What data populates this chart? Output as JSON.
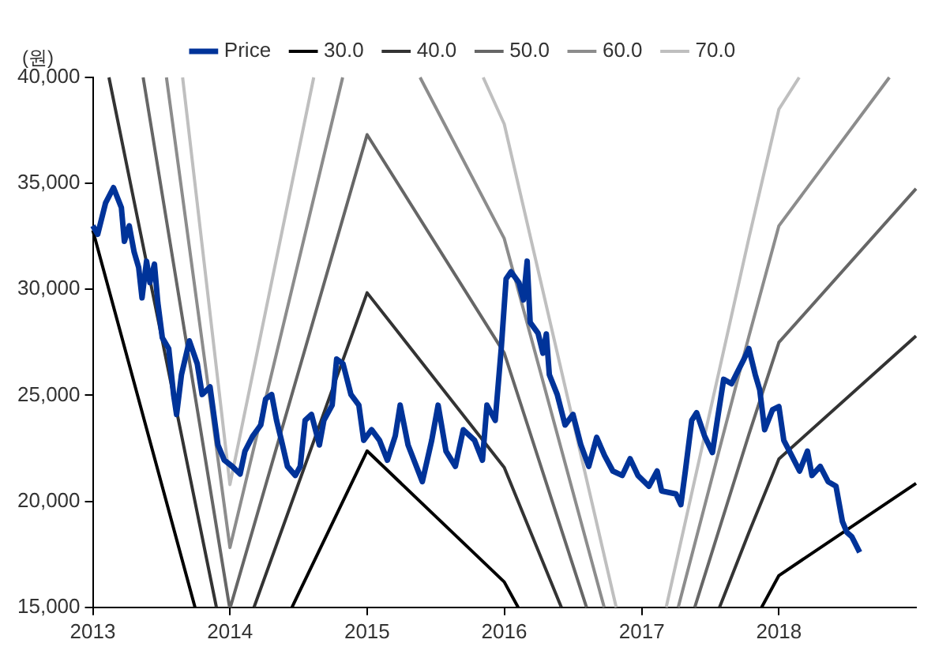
{
  "chart_data": {
    "type": "line",
    "ylabel": "(원)",
    "xlim": [
      "2013-01-01",
      "2019-01-01"
    ],
    "xticks": [
      "2013",
      "2014",
      "2015",
      "2016",
      "2017",
      "2018"
    ],
    "ylim": [
      15000,
      40000
    ],
    "yticks": [
      {
        "value": 15000,
        "label": "15,000"
      },
      {
        "value": 20000,
        "label": "20,000"
      },
      {
        "value": 25000,
        "label": "25,000"
      },
      {
        "value": 30000,
        "label": "30,000"
      },
      {
        "value": 35000,
        "label": "35,000"
      },
      {
        "value": 40000,
        "label": "40,000"
      }
    ],
    "grid": false,
    "legend": "top",
    "marker": "none",
    "line_style": "solid",
    "series": [
      {
        "name": "Price",
        "color": "#003399",
        "x": [
          "2013-01-01",
          "2013-01-14",
          "2013-02-04",
          "2013-02-25",
          "2013-03-18",
          "2013-03-26",
          "2013-04-08",
          "2013-04-21",
          "2013-05-03",
          "2013-05-12",
          "2013-05-24",
          "2013-06-02",
          "2013-06-14",
          "2013-06-23",
          "2013-07-05",
          "2013-07-22",
          "2013-08-04",
          "2013-08-12",
          "2013-08-25",
          "2013-09-15",
          "2013-10-06",
          "2013-10-19",
          "2013-11-09",
          "2013-11-30",
          "2013-12-17",
          "2014-01-07",
          "2014-01-28",
          "2014-02-10",
          "2014-03-03",
          "2014-03-24",
          "2014-04-06",
          "2014-04-22",
          "2014-05-05",
          "2014-05-18",
          "2014-06-03",
          "2014-06-24",
          "2014-07-07",
          "2014-07-20",
          "2014-08-06",
          "2014-08-27",
          "2014-09-08",
          "2014-09-30",
          "2014-10-12",
          "2014-10-29",
          "2014-11-19",
          "2014-12-10",
          "2014-12-23",
          "2015-01-13",
          "2015-02-03",
          "2015-02-24",
          "2015-03-17",
          "2015-03-30",
          "2015-04-20",
          "2015-05-28",
          "2015-06-22",
          "2015-07-09",
          "2015-07-30",
          "2015-08-24",
          "2015-09-14",
          "2015-10-14",
          "2015-11-04",
          "2015-11-16",
          "2015-12-08",
          "2015-12-24",
          "2016-01-06",
          "2016-01-19",
          "2016-02-09",
          "2016-02-21",
          "2016-03-02",
          "2016-03-10",
          "2016-03-31",
          "2016-04-13",
          "2016-04-22",
          "2016-04-30",
          "2016-05-21",
          "2016-06-11",
          "2016-07-02",
          "2016-07-23",
          "2016-08-13",
          "2016-09-03",
          "2016-09-24",
          "2016-10-16",
          "2016-11-10",
          "2016-12-01",
          "2016-12-22",
          "2017-01-20",
          "2017-02-11",
          "2017-02-23",
          "2017-04-02",
          "2017-04-15",
          "2017-04-27",
          "2017-05-14",
          "2017-05-27",
          "2017-06-17",
          "2017-07-08",
          "2017-07-21",
          "2017-08-07",
          "2017-08-28",
          "2017-09-09",
          "2017-09-30",
          "2017-10-13",
          "2017-10-30",
          "2017-11-11",
          "2017-11-24",
          "2017-12-15",
          "2018-01-01",
          "2018-01-14",
          "2018-02-04",
          "2018-02-25",
          "2018-03-18",
          "2018-03-30",
          "2018-04-21",
          "2018-05-12",
          "2018-06-02",
          "2018-06-19",
          "2018-07-01",
          "2018-07-14",
          "2018-08-04"
        ],
        "values": [
          33000,
          32600,
          34080,
          34800,
          33860,
          32270,
          33000,
          31760,
          31040,
          29600,
          31330,
          30320,
          31190,
          29380,
          27720,
          27210,
          25040,
          24100,
          25980,
          27570,
          26490,
          25040,
          25400,
          22660,
          21940,
          21650,
          21290,
          22370,
          23090,
          23600,
          24830,
          25040,
          23820,
          22880,
          21650,
          21220,
          21650,
          23820,
          24100,
          22660,
          23820,
          24540,
          26710,
          26490,
          25040,
          24540,
          22880,
          23380,
          22880,
          21940,
          23090,
          24540,
          22660,
          20930,
          22880,
          24540,
          22370,
          21650,
          23380,
          22880,
          21940,
          24540,
          23820,
          27210,
          30500,
          30830,
          30320,
          29500,
          31330,
          28440,
          27930,
          26990,
          27900,
          25980,
          25040,
          23600,
          24100,
          22660,
          21650,
          23020,
          22160,
          21430,
          21220,
          22010,
          21220,
          20710,
          21430,
          20490,
          20350,
          19840,
          21430,
          23820,
          24180,
          23090,
          22300,
          23820,
          25760,
          25550,
          25980,
          26710,
          27210,
          25980,
          25260,
          23380,
          24320,
          24470,
          22880,
          22160,
          21430,
          22370,
          21220,
          21650,
          20930,
          20710,
          19050,
          18540,
          18330,
          17600
        ]
      },
      {
        "name": "30.0",
        "color": "#000000",
        "x": [
          "2013-01-01",
          "2013-09-30",
          "2014-02-06",
          "2014-06-15",
          "2015-01-01",
          "2016-01-01",
          "2016-02-07",
          "2017-01-01",
          "2017-11-16",
          "2018-01-01",
          "2019-01-01"
        ],
        "values": [
          32790,
          15000,
          null,
          15000,
          22380,
          16200,
          15000,
          null,
          15000,
          16500,
          20850
        ]
      },
      {
        "name": "40.0",
        "color": "#333333",
        "x": [
          "2013-02-13",
          "2013-11-26",
          "2014-01-19",
          "2014-03-06",
          "2015-01-01",
          "2016-01-01",
          "2016-06-01",
          "2017-01-01",
          "2017-07-27",
          "2017-10-13",
          "2018-01-01",
          "2019-01-01"
        ],
        "values": [
          40000,
          15000,
          null,
          15000,
          29840,
          21600,
          15000,
          null,
          15000,
          18520,
          22000,
          27800
        ]
      },
      {
        "name": "50.0",
        "color": "#666666",
        "x": [
          "2013-05-15",
          "2013-12-31",
          "2014-01-01",
          "2014-01-02",
          "2015-01-01",
          "2016-01-01",
          "2016-08-07",
          "2017-01-01",
          "2017-05-22",
          "2017-10-13",
          "2018-01-01",
          "2019-01-01"
        ],
        "values": [
          40000,
          15000,
          null,
          15000,
          37300,
          27000,
          15000,
          null,
          15000,
          23150,
          27500,
          34750
        ]
      },
      {
        "name": "60.0",
        "color": "#8c8c8c",
        "x": [
          "2013-07-16",
          "2014-01-01",
          "2014-10-28",
          "2015-01-01",
          "2015-05-22",
          "2016-01-01",
          "2016-09-23",
          "2017-01-01",
          "2017-04-08",
          "2017-10-13",
          "2018-01-01",
          "2018-10-22"
        ],
        "values": [
          40000,
          17820,
          40000,
          null,
          40000,
          32400,
          15000,
          null,
          15000,
          27780,
          33000,
          40000
        ]
      },
      {
        "name": "70.0",
        "color": "#bfbfbf",
        "x": [
          "2013-08-28",
          "2014-01-01",
          "2014-08-12",
          "2015-01-01",
          "2015-11-06",
          "2016-01-01",
          "2016-10-25",
          "2017-01-01",
          "2017-03-07",
          "2017-10-13",
          "2018-01-01",
          "2018-02-24"
        ],
        "values": [
          40000,
          20790,
          40000,
          null,
          40000,
          37800,
          15000,
          null,
          15000,
          32410,
          38500,
          40000
        ]
      }
    ]
  }
}
